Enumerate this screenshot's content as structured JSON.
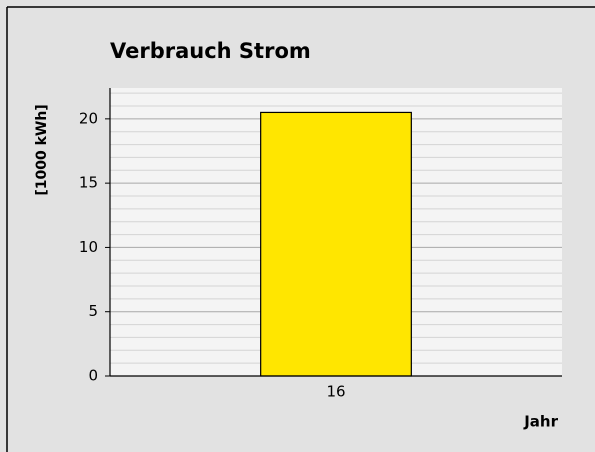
{
  "chart_data": {
    "type": "bar",
    "title": "Verbrauch Strom",
    "ylabel": "[1000 kWh]",
    "xlabel": "Jahr",
    "categories": [
      "16"
    ],
    "values": [
      20.5
    ],
    "color": "#ffe600",
    "ylim": [
      0,
      22.4
    ],
    "yticks": [
      0,
      5,
      10,
      15,
      20
    ],
    "yminorticks": [
      1,
      2,
      3,
      4,
      6,
      7,
      8,
      9,
      11,
      12,
      13,
      14,
      16,
      17,
      18,
      19,
      21,
      22
    ],
    "grid": true
  }
}
